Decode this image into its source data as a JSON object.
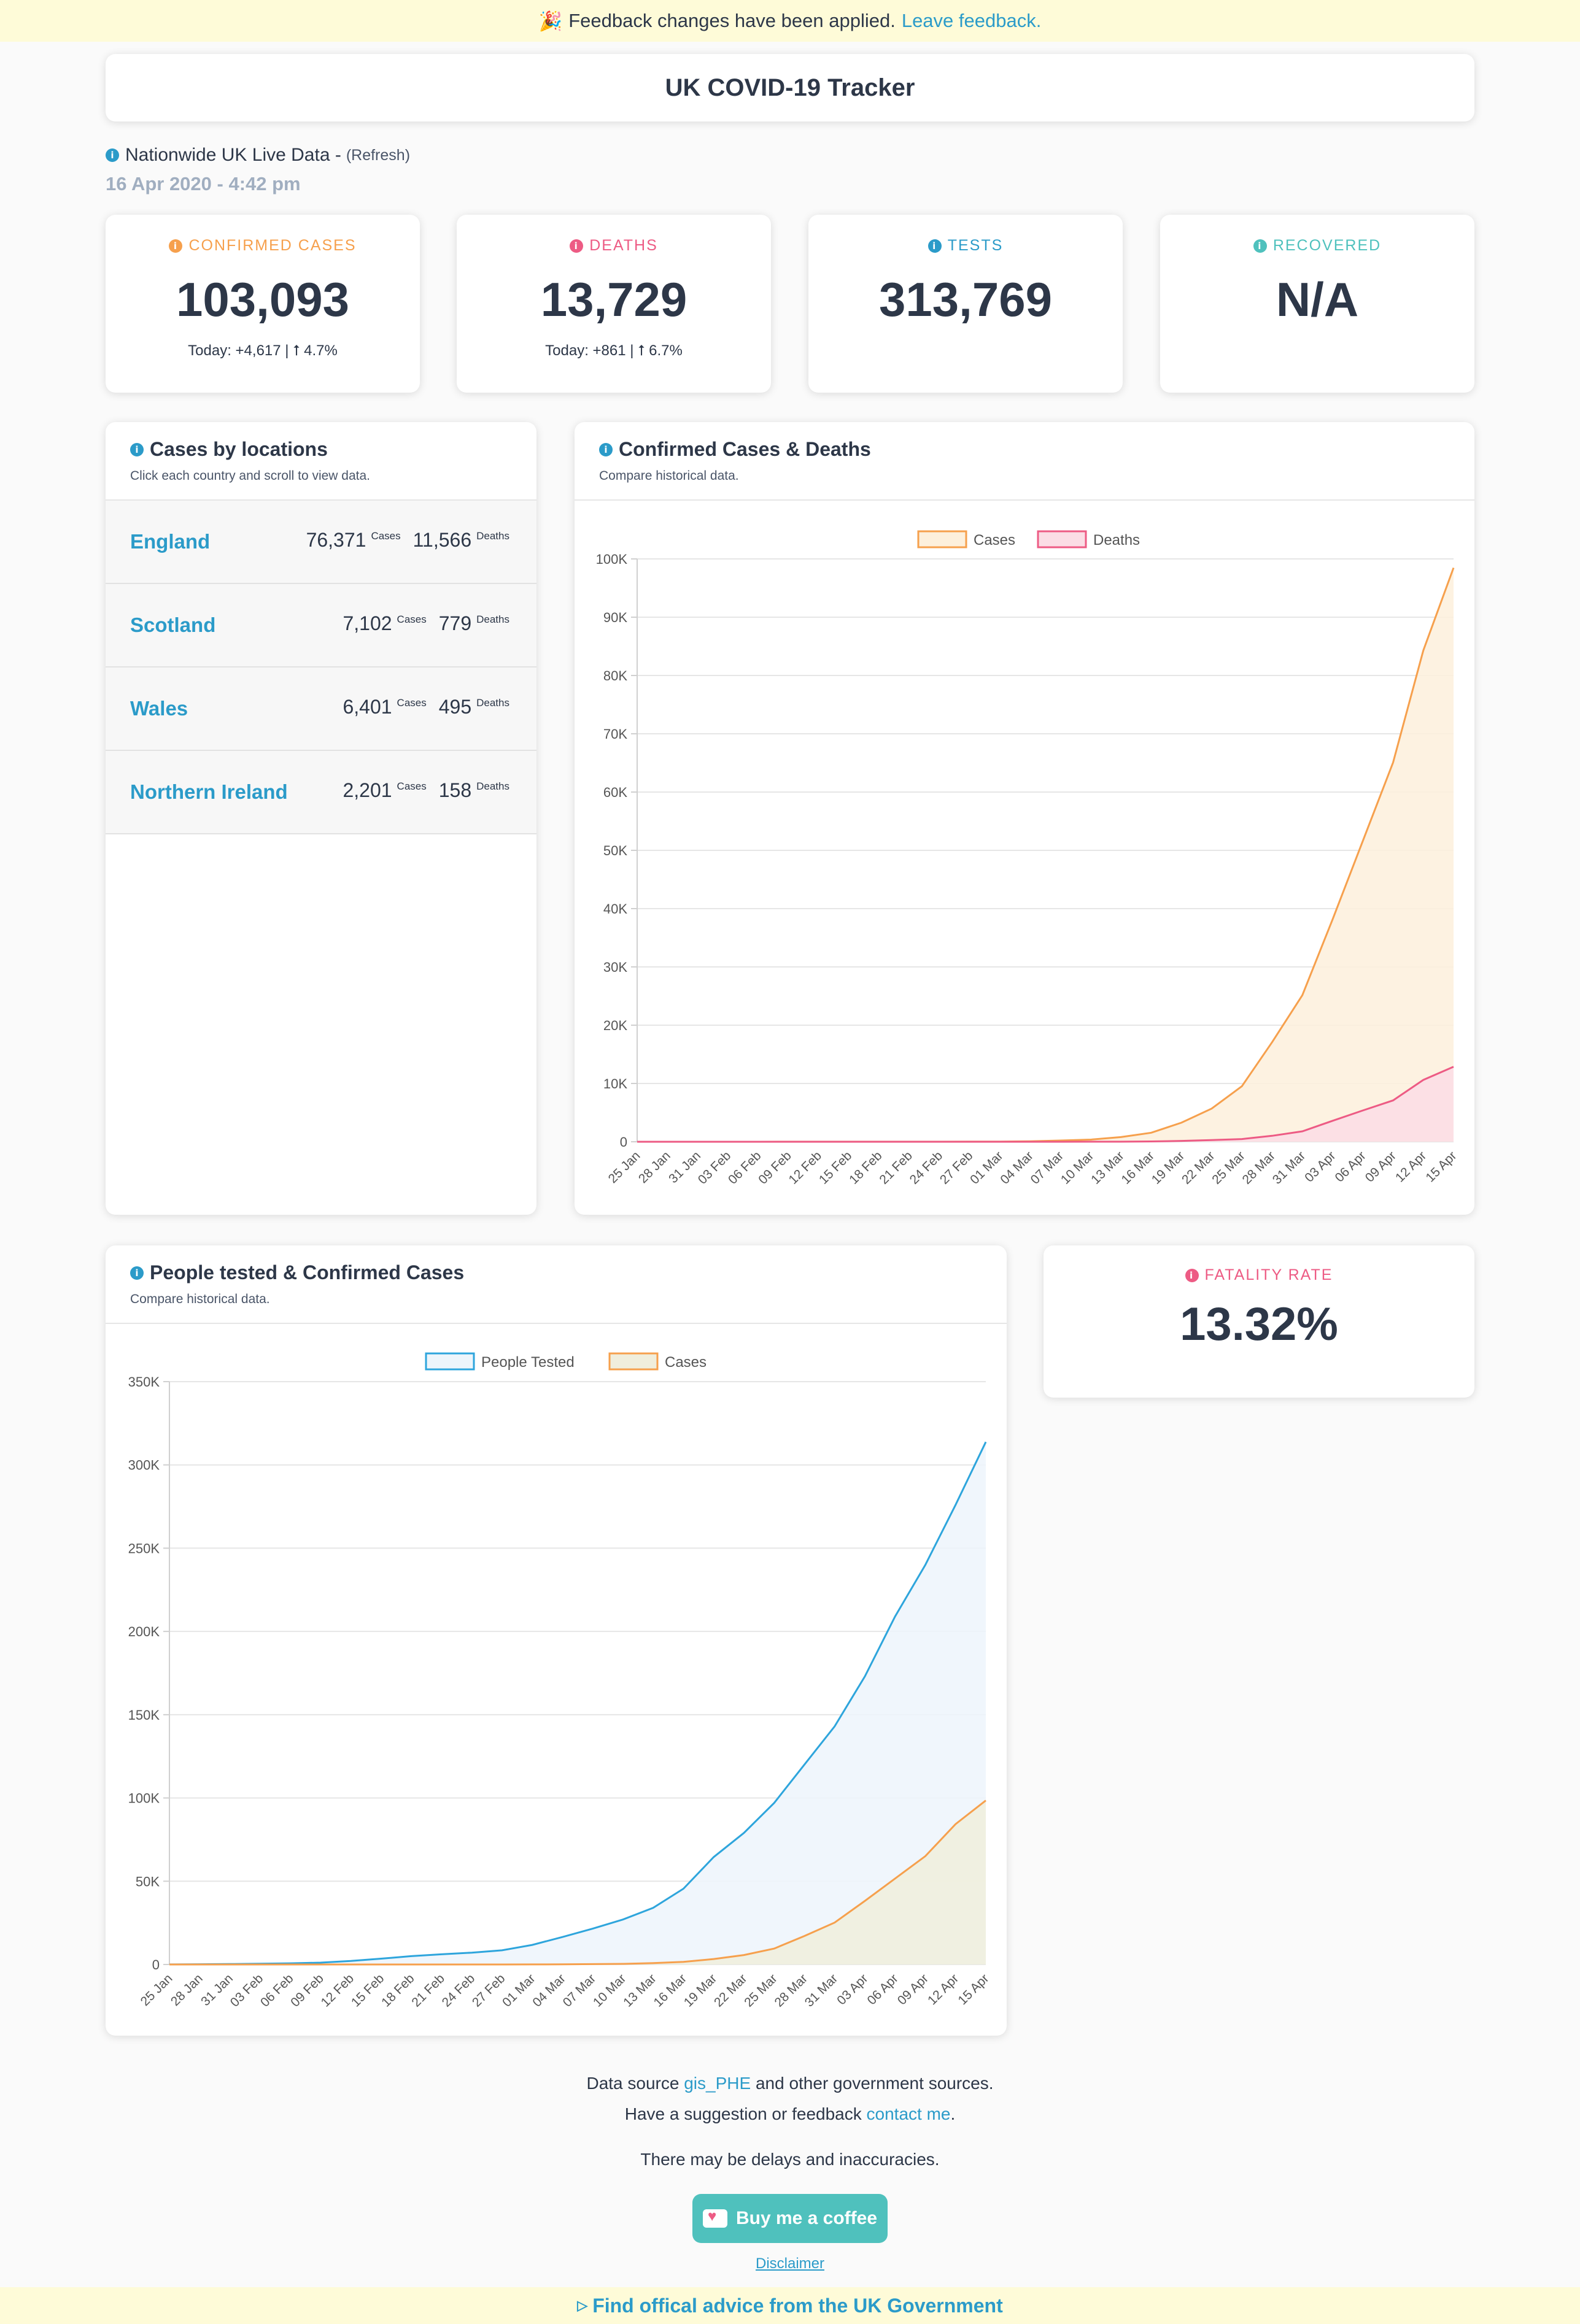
{
  "banner": {
    "emoji": "🎉",
    "text": "Feedback changes have been applied.",
    "link": "Leave feedback."
  },
  "app_title": "UK COVID-19 Tracker",
  "live": {
    "label": "Nationwide UK Live Data -",
    "refresh": "(Refresh)",
    "date": "16 Apr 2020 - 4:42 pm"
  },
  "stats": [
    {
      "label": "CONFIRMED CASES",
      "value": "103,093",
      "today": "Today: +4,617 | ⭡ 4.7%",
      "color": "#f6a04d"
    },
    {
      "label": "DEATHS",
      "value": "13,729",
      "today": "Today: +861 | ⭡ 6.7%",
      "color": "#ed5b84"
    },
    {
      "label": "TESTS",
      "value": "313,769",
      "today": "",
      "color": "#2b9bc9"
    },
    {
      "label": "RECOVERED",
      "value": "N/A",
      "today": "",
      "color": "#4fc1bd"
    }
  ],
  "locations": {
    "title": "Cases by locations",
    "subtitle": "Click each country and scroll to view data.",
    "cases_label": "Cases",
    "deaths_label": "Deaths",
    "rows": [
      {
        "name": "England",
        "cases": "76,371",
        "deaths": "11,566"
      },
      {
        "name": "Scotland",
        "cases": "7,102",
        "deaths": "779"
      },
      {
        "name": "Wales",
        "cases": "6,401",
        "deaths": "495"
      },
      {
        "name": "Northern Ireland",
        "cases": "2,201",
        "deaths": "158"
      }
    ]
  },
  "chart1_panel": {
    "title": "Confirmed Cases & Deaths",
    "subtitle": "Compare historical data."
  },
  "chart2_panel": {
    "title": "People tested & Confirmed Cases",
    "subtitle": "Compare historical data."
  },
  "fatality": {
    "label": "FATALITY RATE",
    "value": "13.32%"
  },
  "footer": {
    "line1_pre": "Data source",
    "line1_link": "gis_PHE",
    "line1_post": "and other government sources.",
    "line2_pre": "Have a suggestion or feedback",
    "line2_link": "contact me",
    "line2_post": ".",
    "line3": "There may be delays and inaccuracies.",
    "coffee": "Buy me a coffee",
    "disclaimer": "Disclaimer",
    "gov_link": "Find offical advice from the UK Government"
  },
  "chart_data": [
    {
      "type": "area",
      "x": [
        "25 Jan",
        "28 Jan",
        "31 Jan",
        "03 Feb",
        "06 Feb",
        "09 Feb",
        "12 Feb",
        "15 Feb",
        "18 Feb",
        "21 Feb",
        "24 Feb",
        "27 Feb",
        "01 Mar",
        "04 Mar",
        "07 Mar",
        "10 Mar",
        "13 Mar",
        "16 Mar",
        "19 Mar",
        "22 Mar",
        "25 Mar",
        "28 Mar",
        "31 Mar",
        "03 Apr",
        "06 Apr",
        "09 Apr",
        "12 Apr",
        "15 Apr"
      ],
      "series": [
        {
          "name": "Cases",
          "color": "#f6a04d",
          "fill": "#fdf0dc",
          "values": [
            0,
            0,
            2,
            2,
            3,
            8,
            9,
            9,
            9,
            9,
            13,
            16,
            36,
            87,
            206,
            373,
            798,
            1543,
            3269,
            5683,
            9529,
            17089,
            25150,
            38168,
            51608,
            65077,
            84279,
            98476
          ]
        },
        {
          "name": "Deaths",
          "color": "#ed5b84",
          "fill": "#fbdde5",
          "values": [
            0,
            0,
            0,
            0,
            0,
            0,
            0,
            0,
            0,
            0,
            0,
            0,
            0,
            0,
            2,
            6,
            11,
            55,
            144,
            281,
            463,
            1019,
            1789,
            3605,
            5373,
            7097,
            10612,
            12868
          ]
        }
      ],
      "ylim": [
        0,
        100000
      ],
      "yticks": [
        "0",
        "10K",
        "20K",
        "30K",
        "40K",
        "50K",
        "60K",
        "70K",
        "80K",
        "90K",
        "100K"
      ]
    },
    {
      "type": "area",
      "x": [
        "25 Jan",
        "28 Jan",
        "31 Jan",
        "03 Feb",
        "06 Feb",
        "09 Feb",
        "12 Feb",
        "15 Feb",
        "18 Feb",
        "21 Feb",
        "24 Feb",
        "27 Feb",
        "01 Mar",
        "04 Mar",
        "07 Mar",
        "10 Mar",
        "13 Mar",
        "16 Mar",
        "19 Mar",
        "22 Mar",
        "25 Mar",
        "28 Mar",
        "31 Mar",
        "03 Apr",
        "06 Apr",
        "09 Apr",
        "12 Apr",
        "15 Apr"
      ],
      "series": [
        {
          "name": "People Tested",
          "color": "#2ea5dc",
          "fill": "#edf5fb",
          "values": [
            31,
            161,
            252,
            450,
            700,
            1100,
            2100,
            3500,
            5000,
            6100,
            7100,
            8500,
            11750,
            16500,
            21500,
            27000,
            34000,
            45500,
            64500,
            79000,
            97000,
            120000,
            143000,
            173000,
            209000,
            240000,
            276000,
            313769
          ]
        },
        {
          "name": "Cases",
          "color": "#f6a04d",
          "fill": "#f0eedc",
          "values": [
            0,
            0,
            2,
            2,
            3,
            8,
            9,
            9,
            9,
            9,
            13,
            16,
            36,
            87,
            206,
            373,
            798,
            1543,
            3269,
            5683,
            9529,
            17089,
            25150,
            38168,
            51608,
            65077,
            84279,
            98476
          ]
        }
      ],
      "ylim": [
        0,
        350000
      ],
      "yticks": [
        "0",
        "50K",
        "100K",
        "150K",
        "200K",
        "250K",
        "300K",
        "350K"
      ]
    }
  ]
}
